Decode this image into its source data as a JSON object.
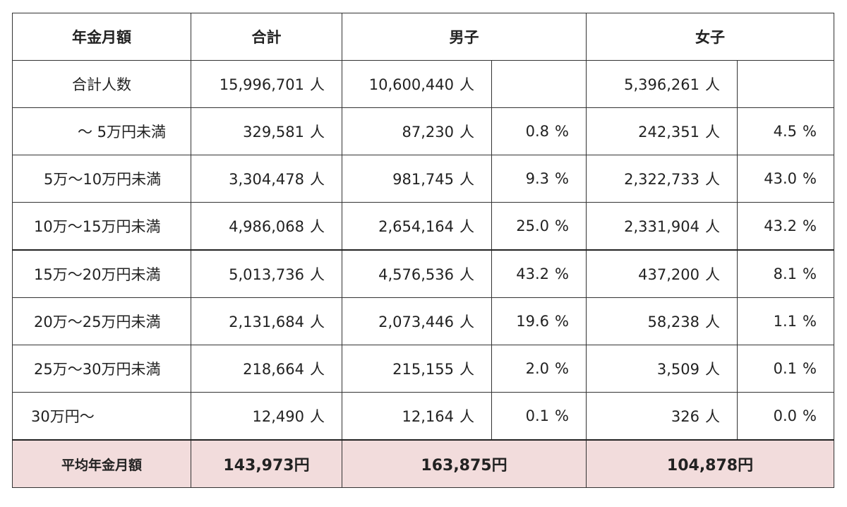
{
  "header": {
    "label": "年金月額",
    "total": "合計",
    "male": "男子",
    "female": "女子"
  },
  "unit_person": "人",
  "unit_percent": "%",
  "total_row": {
    "label": "合計人数",
    "total": "15,996,701",
    "male": "10,600,440",
    "female": "5,396,261"
  },
  "rows": [
    {
      "label": "～ 5万円未満",
      "total": "329,581",
      "male": "87,230",
      "male_pct": "0.8",
      "female": "242,351",
      "female_pct": "4.5"
    },
    {
      "label": "5万～10万円未満",
      "total": "3,304,478",
      "male": "981,745",
      "male_pct": "9.3",
      "female": "2,322,733",
      "female_pct": "43.0"
    },
    {
      "label": "10万～15万円未満",
      "total": "4,986,068",
      "male": "2,654,164",
      "male_pct": "25.0",
      "female": "2,331,904",
      "female_pct": "43.2"
    },
    {
      "label": "15万～20万円未満",
      "total": "5,013,736",
      "male": "4,576,536",
      "male_pct": "43.2",
      "female": "437,200",
      "female_pct": "8.1"
    },
    {
      "label": "20万～25万円未満",
      "total": "2,131,684",
      "male": "2,073,446",
      "male_pct": "19.6",
      "female": "58,238",
      "female_pct": "1.1"
    },
    {
      "label": "25万～30万円未満",
      "total": "218,664",
      "male": "215,155",
      "male_pct": "2.0",
      "female": "3,509",
      "female_pct": "0.1"
    },
    {
      "label": "30万円～",
      "total": "12,490",
      "male": "12,164",
      "male_pct": "0.1",
      "female": "326",
      "female_pct": "0.0"
    }
  ],
  "average_row": {
    "label": "平均年金月額",
    "total": "143,973円",
    "male": "163,875円",
    "female": "104,878円"
  },
  "colors": {
    "average_row_bg": "#f2dcdc",
    "border": "#333333"
  }
}
